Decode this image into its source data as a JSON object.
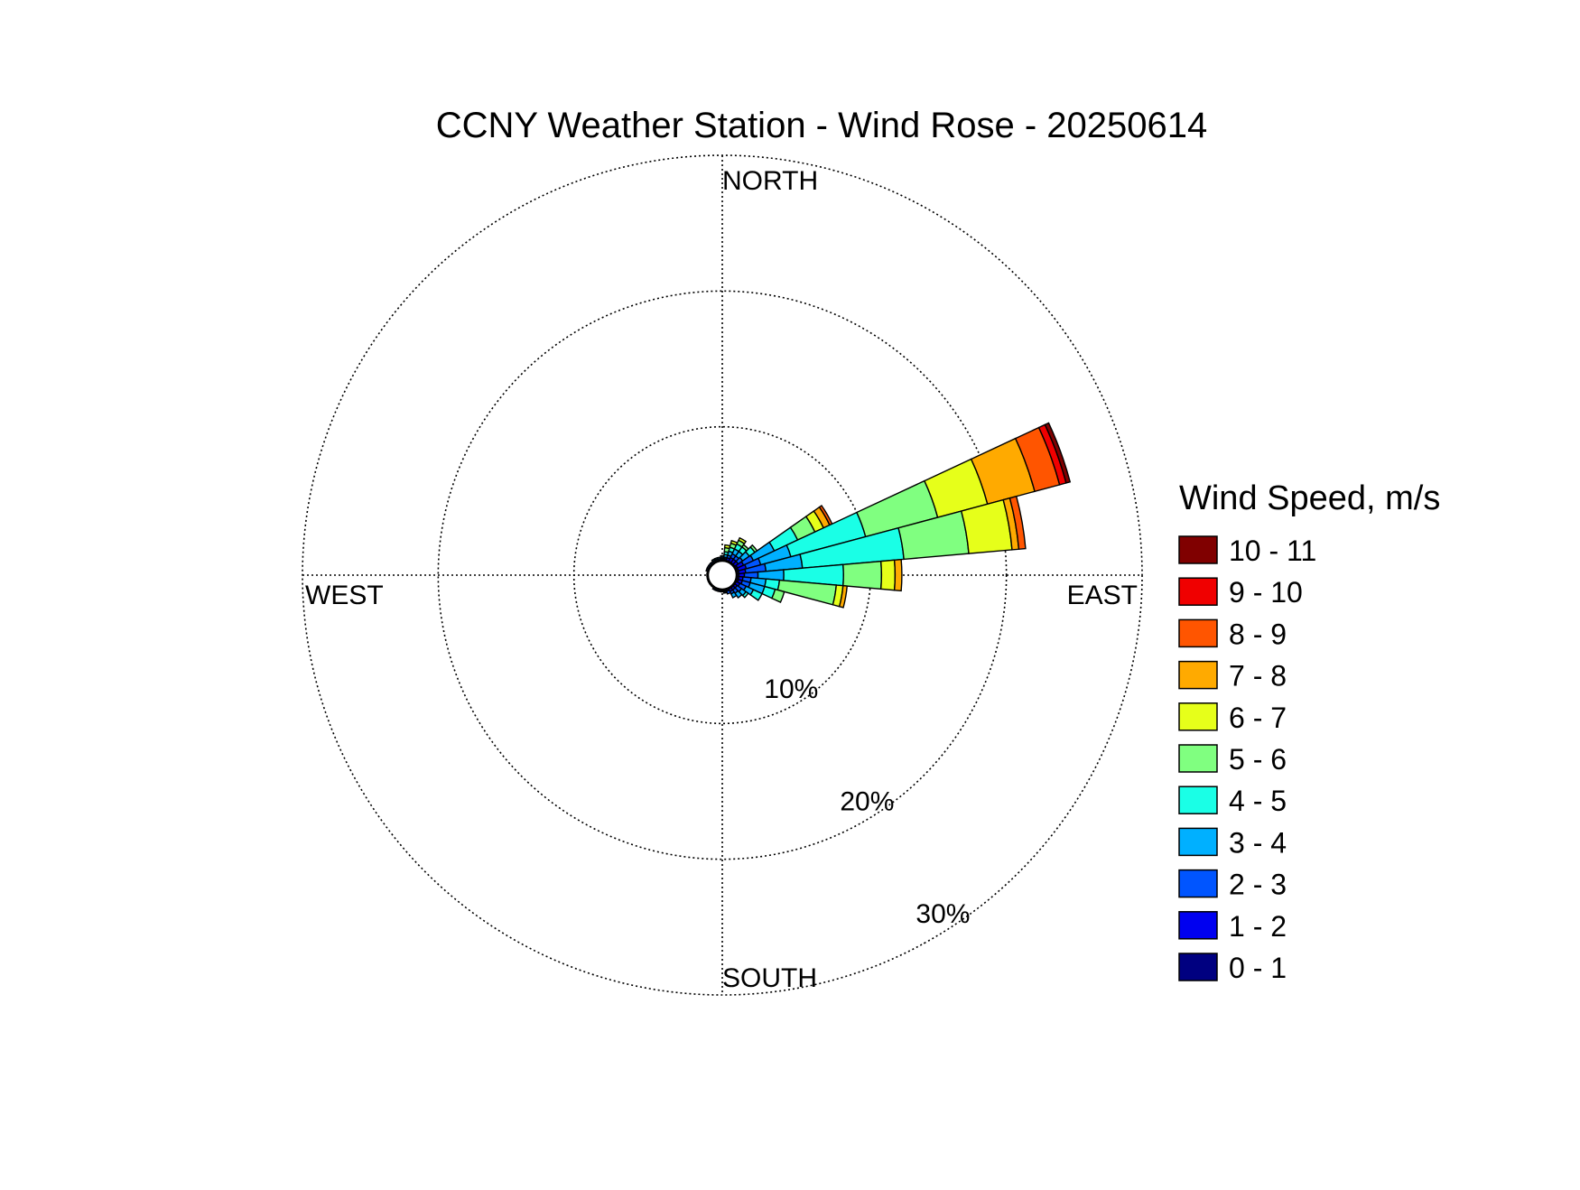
{
  "chart_data": {
    "type": "windrose",
    "title": "CCNY Weather Station - Wind Rose - 20250614",
    "directions": {
      "north": "NORTH",
      "south": "SOUTH",
      "east": "EAST",
      "west": "WEST"
    },
    "radial_axis": {
      "unit": "%",
      "ticks": [
        10,
        20,
        30
      ],
      "tick_labels": [
        "10%",
        "20%",
        "30%"
      ],
      "max": 30,
      "grid": true
    },
    "legend": {
      "title": "Wind Speed, m/s",
      "placement": "right",
      "items": [
        {
          "label": "10 - 11",
          "color": "#800000"
        },
        {
          "label": "9 - 10",
          "color": "#f00000"
        },
        {
          "label": "8 - 9",
          "color": "#ff5500"
        },
        {
          "label": "7 - 8",
          "color": "#ffaa00"
        },
        {
          "label": "6 - 7",
          "color": "#e6ff1a"
        },
        {
          "label": "5 - 6",
          "color": "#80ff80"
        },
        {
          "label": "4 - 5",
          "color": "#1affe6"
        },
        {
          "label": "3 - 4",
          "color": "#00b0ff"
        },
        {
          "label": "2 - 3",
          "color": "#0055ff"
        },
        {
          "label": "1 - 2",
          "color": "#0000f0"
        },
        {
          "label": "0 - 1",
          "color": "#000080"
        }
      ]
    },
    "speed_bins": [
      "0 - 1",
      "1 - 2",
      "2 - 3",
      "3 - 4",
      "4 - 5",
      "5 - 6",
      "6 - 7",
      "7 - 8",
      "8 - 9",
      "9 - 10",
      "10 - 11"
    ],
    "sector_width_deg": 10,
    "sectors": [
      {
        "direction_deg": 10,
        "cumulative_percent": [
          0.2,
          0.3,
          0.4,
          0.6,
          0.8,
          1.1,
          1.3
        ]
      },
      {
        "direction_deg": 20,
        "cumulative_percent": [
          0.2,
          0.4,
          0.6,
          0.9,
          1.2,
          1.5,
          1.7
        ]
      },
      {
        "direction_deg": 30,
        "cumulative_percent": [
          0.2,
          0.5,
          0.8,
          1.2,
          1.6,
          1.9,
          2.1
        ]
      },
      {
        "direction_deg": 40,
        "cumulative_percent": [
          0.2,
          0.5,
          0.8,
          1.2,
          1.6,
          1.8
        ]
      },
      {
        "direction_deg": 50,
        "cumulative_percent": [
          0.2,
          0.5,
          0.9,
          1.5,
          2.0,
          2.2
        ]
      },
      {
        "direction_deg": 60,
        "cumulative_percent": [
          0.3,
          0.8,
          1.6,
          3.3,
          5.2,
          6.6,
          7.3,
          7.8,
          8.0
        ]
      },
      {
        "direction_deg": 70,
        "cumulative_percent": [
          0.3,
          0.9,
          2.0,
          4.3,
          10.0,
          15.5,
          19.3,
          22.9,
          24.8,
          25.3,
          25.6
        ]
      },
      {
        "direction_deg": 80,
        "cumulative_percent": [
          0.3,
          0.8,
          2.3,
          5.0,
          12.5,
          17.3,
          20.5,
          21.0,
          21.5
        ]
      },
      {
        "direction_deg": 90,
        "cumulative_percent": [
          0.3,
          0.7,
          1.7,
          3.6,
          8.0,
          10.8,
          11.8,
          12.3
        ]
      },
      {
        "direction_deg": 100,
        "cumulative_percent": [
          0.3,
          0.6,
          1.2,
          2.3,
          3.3,
          7.5,
          8.0,
          8.3
        ]
      },
      {
        "direction_deg": 110,
        "cumulative_percent": [
          0.3,
          0.6,
          1.2,
          2.3,
          3.1,
          3.8
        ]
      },
      {
        "direction_deg": 120,
        "cumulative_percent": [
          0.2,
          0.5,
          1.0,
          1.6,
          2.3
        ]
      },
      {
        "direction_deg": 130,
        "cumulative_percent": [
          0.2,
          0.4,
          0.8,
          1.2,
          1.4
        ]
      },
      {
        "direction_deg": 140,
        "cumulative_percent": [
          0.2,
          0.4,
          0.7,
          1.1
        ]
      },
      {
        "direction_deg": 150,
        "cumulative_percent": [
          0.2,
          0.4,
          0.6,
          0.9
        ]
      },
      {
        "direction_deg": 160,
        "cumulative_percent": [
          0.2,
          0.3,
          0.5
        ]
      },
      {
        "direction_deg": 170,
        "cumulative_percent": [
          0.2,
          0.3,
          0.4
        ]
      },
      {
        "direction_deg": 180,
        "cumulative_percent": [
          0.1,
          0.2,
          0.3
        ]
      },
      {
        "direction_deg": 190,
        "cumulative_percent": [
          0.1,
          0.2,
          0.3
        ]
      },
      {
        "direction_deg": 200,
        "cumulative_percent": [
          0.1,
          0.2,
          0.3
        ]
      },
      {
        "direction_deg": 210,
        "cumulative_percent": [
          0.1,
          0.2,
          0.3
        ]
      },
      {
        "direction_deg": 220,
        "cumulative_percent": [
          0.1,
          0.2
        ]
      },
      {
        "direction_deg": 230,
        "cumulative_percent": [
          0.1,
          0.2
        ]
      },
      {
        "direction_deg": 240,
        "cumulative_percent": [
          0.1,
          0.2
        ]
      },
      {
        "direction_deg": 250,
        "cumulative_percent": [
          0.1,
          0.2
        ]
      },
      {
        "direction_deg": 260,
        "cumulative_percent": [
          0.1,
          0.2
        ]
      },
      {
        "direction_deg": 270,
        "cumulative_percent": [
          0.1,
          0.2
        ]
      },
      {
        "direction_deg": 280,
        "cumulative_percent": [
          0.1,
          0.2
        ]
      },
      {
        "direction_deg": 290,
        "cumulative_percent": [
          0.1,
          0.2,
          0.3
        ]
      },
      {
        "direction_deg": 300,
        "cumulative_percent": [
          0.1,
          0.2,
          0.3
        ]
      },
      {
        "direction_deg": 310,
        "cumulative_percent": [
          0.1,
          0.2,
          0.3
        ]
      },
      {
        "direction_deg": 320,
        "cumulative_percent": [
          0.1,
          0.2,
          0.3
        ]
      },
      {
        "direction_deg": 330,
        "cumulative_percent": [
          0.1,
          0.2,
          0.3,
          0.4
        ]
      },
      {
        "direction_deg": 340,
        "cumulative_percent": [
          0.1,
          0.2,
          0.3,
          0.4
        ]
      },
      {
        "direction_deg": 350,
        "cumulative_percent": [
          0.1,
          0.2,
          0.3,
          0.4
        ]
      },
      {
        "direction_deg": 360,
        "cumulative_percent": [
          0.2,
          0.3,
          0.4,
          0.5
        ]
      }
    ]
  }
}
